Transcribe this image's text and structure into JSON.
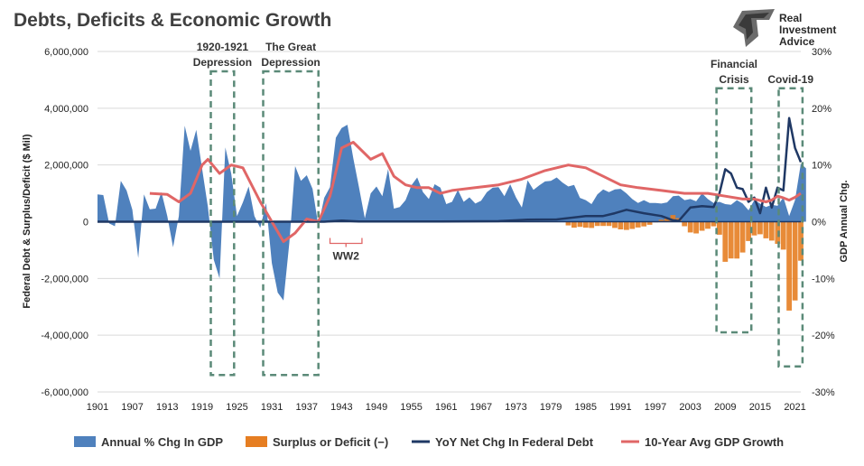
{
  "chart_data": {
    "type": "area",
    "title": "Debts, Deficits & Economic Growth",
    "ylabel": "Federal Debt & Surplus/Deficit ($ Mil)",
    "y2label": "GDP Annual Chg.",
    "ylim": [
      -6000000,
      6000000
    ],
    "y2lim": [
      -30,
      30
    ],
    "yticks": [
      "6,000,000",
      "4,000,000",
      "2,000,000",
      "0",
      "-2,000,000",
      "-4,000,000",
      "-6,000,000"
    ],
    "y2ticks": [
      "30%",
      "20%",
      "10%",
      "0%",
      "-10%",
      "-20%",
      "-30%"
    ],
    "xlim": [
      1901,
      2022
    ],
    "xticks": [
      "1901",
      "1907",
      "1913",
      "1919",
      "1925",
      "1931",
      "1937",
      "1943",
      "1949",
      "1955",
      "1961",
      "1967",
      "1973",
      "1979",
      "1985",
      "1991",
      "1997",
      "2003",
      "2009",
      "2015",
      "2021"
    ],
    "gridlines": "horizontal",
    "legend_position": "bottom",
    "series": [
      {
        "name": "Annual % Chg In GDP",
        "kind": "area",
        "axis": "right",
        "color": "#4f81bd",
        "points": [
          [
            1901,
            4.8
          ],
          [
            1902,
            4.7
          ],
          [
            1903,
            -0.3
          ],
          [
            1904,
            -0.8
          ],
          [
            1905,
            7.2
          ],
          [
            1906,
            5.5
          ],
          [
            1907,
            2.1
          ],
          [
            1908,
            -6.4
          ],
          [
            1909,
            4.8
          ],
          [
            1910,
            2.2
          ],
          [
            1911,
            2.3
          ],
          [
            1912,
            5.2
          ],
          [
            1913,
            1.0
          ],
          [
            1914,
            -4.5
          ],
          [
            1915,
            1.0
          ],
          [
            1916,
            16.9
          ],
          [
            1917,
            12.5
          ],
          [
            1918,
            16.2
          ],
          [
            1919,
            9.3
          ],
          [
            1920,
            2.6
          ],
          [
            1921,
            -6.7
          ],
          [
            1922,
            -10.0
          ],
          [
            1923,
            13.1
          ],
          [
            1924,
            8.5
          ],
          [
            1925,
            1.0
          ],
          [
            1926,
            3.4
          ],
          [
            1927,
            6.2
          ],
          [
            1928,
            1.0
          ],
          [
            1929,
            -1.1
          ],
          [
            1930,
            3.3
          ],
          [
            1931,
            -7.3
          ],
          [
            1932,
            -12.5
          ],
          [
            1933,
            -13.9
          ],
          [
            1934,
            -3.7
          ],
          [
            1935,
            9.8
          ],
          [
            1936,
            7.2
          ],
          [
            1937,
            8.2
          ],
          [
            1938,
            5.8
          ],
          [
            1939,
            -0.7
          ],
          [
            1940,
            4.2
          ],
          [
            1941,
            6.1
          ],
          [
            1942,
            14.8
          ],
          [
            1943,
            16.5
          ],
          [
            1944,
            17.1
          ],
          [
            1945,
            11.2
          ],
          [
            1946,
            6.0
          ],
          [
            1947,
            0.6
          ],
          [
            1948,
            5.0
          ],
          [
            1949,
            6.2
          ],
          [
            1950,
            4.5
          ],
          [
            1951,
            9.3
          ],
          [
            1952,
            2.3
          ],
          [
            1953,
            2.6
          ],
          [
            1954,
            3.8
          ],
          [
            1955,
            6.4
          ],
          [
            1956,
            7.8
          ],
          [
            1957,
            5.2
          ],
          [
            1958,
            4.0
          ],
          [
            1959,
            6.6
          ],
          [
            1960,
            6.0
          ],
          [
            1961,
            3.1
          ],
          [
            1962,
            3.5
          ],
          [
            1963,
            5.6
          ],
          [
            1964,
            3.5
          ],
          [
            1965,
            4.3
          ],
          [
            1966,
            3.2
          ],
          [
            1967,
            3.7
          ],
          [
            1968,
            5.2
          ],
          [
            1969,
            6.0
          ],
          [
            1970,
            6.1
          ],
          [
            1971,
            4.5
          ],
          [
            1972,
            6.6
          ],
          [
            1973,
            4.3
          ],
          [
            1974,
            2.5
          ],
          [
            1975,
            7.3
          ],
          [
            1976,
            5.6
          ],
          [
            1977,
            6.4
          ],
          [
            1978,
            7.1
          ],
          [
            1979,
            7.2
          ],
          [
            1980,
            7.8
          ],
          [
            1981,
            6.9
          ],
          [
            1982,
            6.2
          ],
          [
            1983,
            6.5
          ],
          [
            1984,
            4.2
          ],
          [
            1985,
            3.8
          ],
          [
            1986,
            3.1
          ],
          [
            1987,
            4.8
          ],
          [
            1988,
            5.7
          ],
          [
            1989,
            5.2
          ],
          [
            1990,
            5.7
          ],
          [
            1991,
            5.8
          ],
          [
            1992,
            5.0
          ],
          [
            1993,
            4.0
          ],
          [
            1994,
            3.3
          ],
          [
            1995,
            3.8
          ],
          [
            1996,
            3.3
          ],
          [
            1997,
            3.3
          ],
          [
            1998,
            3.2
          ],
          [
            1999,
            3.4
          ],
          [
            2000,
            4.5
          ],
          [
            2001,
            4.6
          ],
          [
            2002,
            3.8
          ],
          [
            2003,
            4.0
          ],
          [
            2004,
            3.6
          ],
          [
            2005,
            5.0
          ],
          [
            2006,
            4.0
          ],
          [
            2007,
            3.3
          ],
          [
            2008,
            3.5
          ],
          [
            2009,
            3.1
          ],
          [
            2010,
            3.0
          ],
          [
            2011,
            3.8
          ],
          [
            2012,
            3.2
          ],
          [
            2013,
            2.0
          ],
          [
            2014,
            3.8
          ],
          [
            2015,
            3.2
          ],
          [
            2016,
            2.6
          ],
          [
            2017,
            3.0
          ],
          [
            2018,
            2.8
          ],
          [
            2019,
            4.3
          ],
          [
            2020,
            1.0
          ],
          [
            2021,
            3.8
          ],
          [
            2022,
            10.2
          ],
          [
            2022.9,
            9.4
          ]
        ]
      },
      {
        "name": "Surplus or Deficit (−)",
        "kind": "bar",
        "axis": "left",
        "color": "#e67e22",
        "points": [
          [
            1982,
            -130000
          ],
          [
            1983,
            -210000
          ],
          [
            1984,
            -180000
          ],
          [
            1985,
            -210000
          ],
          [
            1986,
            -220000
          ],
          [
            1987,
            -150000
          ],
          [
            1988,
            -150000
          ],
          [
            1989,
            -150000
          ],
          [
            1990,
            -220000
          ],
          [
            1991,
            -270000
          ],
          [
            1992,
            -290000
          ],
          [
            1993,
            -255000
          ],
          [
            1994,
            -203000
          ],
          [
            1995,
            -164000
          ],
          [
            1996,
            -107000
          ],
          [
            1997,
            -22000
          ],
          [
            1998,
            69000
          ],
          [
            1999,
            126000
          ],
          [
            2000,
            236000
          ],
          [
            2001,
            128000
          ],
          [
            2002,
            -158000
          ],
          [
            2003,
            -378000
          ],
          [
            2004,
            -413000
          ],
          [
            2005,
            -318000
          ],
          [
            2006,
            -248000
          ],
          [
            2007,
            -161000
          ],
          [
            2008,
            -459000
          ],
          [
            2009,
            -1413000
          ],
          [
            2010,
            -1294000
          ],
          [
            2011,
            -1300000
          ],
          [
            2012,
            -1087000
          ],
          [
            2013,
            -680000
          ],
          [
            2014,
            -485000
          ],
          [
            2015,
            -442000
          ],
          [
            2016,
            -585000
          ],
          [
            2017,
            -665000
          ],
          [
            2018,
            -779000
          ],
          [
            2019,
            -984000
          ],
          [
            2020,
            -3132000
          ],
          [
            2021,
            -2775000
          ],
          [
            2022,
            -1375000
          ]
        ]
      },
      {
        "name": "YoY Net Chg In Federal Debt",
        "kind": "line",
        "axis": "left",
        "color": "#1f3864",
        "points": [
          [
            1901,
            0
          ],
          [
            1940,
            0
          ],
          [
            1943,
            40000
          ],
          [
            1946,
            10000
          ],
          [
            1950,
            5000
          ],
          [
            1960,
            10000
          ],
          [
            1970,
            20000
          ],
          [
            1975,
            70000
          ],
          [
            1980,
            80000
          ],
          [
            1985,
            200000
          ],
          [
            1988,
            200000
          ],
          [
            1990,
            300000
          ],
          [
            1992,
            420000
          ],
          [
            1995,
            300000
          ],
          [
            1998,
            200000
          ],
          [
            2000,
            50000
          ],
          [
            2001,
            30000
          ],
          [
            2003,
            500000
          ],
          [
            2005,
            550000
          ],
          [
            2007,
            520000
          ],
          [
            2008,
            1000000
          ],
          [
            2009,
            1850000
          ],
          [
            2010,
            1700000
          ],
          [
            2011,
            1200000
          ],
          [
            2012,
            1150000
          ],
          [
            2013,
            700000
          ],
          [
            2014,
            850000
          ],
          [
            2015,
            300000
          ],
          [
            2016,
            1200000
          ],
          [
            2017,
            500000
          ],
          [
            2018,
            1200000
          ],
          [
            2019,
            1100000
          ],
          [
            2020,
            3650000
          ],
          [
            2021,
            2600000
          ],
          [
            2022,
            2100000
          ]
        ]
      },
      {
        "name": "10-Year Avg GDP Growth",
        "kind": "line",
        "axis": "right",
        "color": "#e06666",
        "points": [
          [
            1910,
            5.0
          ],
          [
            1913,
            4.8
          ],
          [
            1915,
            3.5
          ],
          [
            1917,
            5.0
          ],
          [
            1919,
            10.0
          ],
          [
            1920,
            11.0
          ],
          [
            1922,
            8.5
          ],
          [
            1924,
            10.0
          ],
          [
            1926,
            9.5
          ],
          [
            1929,
            3.5
          ],
          [
            1931,
            0.0
          ],
          [
            1933,
            -3.5
          ],
          [
            1935,
            -2.0
          ],
          [
            1937,
            0.5
          ],
          [
            1939,
            0.0
          ],
          [
            1941,
            4.5
          ],
          [
            1943,
            13.0
          ],
          [
            1945,
            14.0
          ],
          [
            1948,
            11.0
          ],
          [
            1950,
            12.0
          ],
          [
            1952,
            8.0
          ],
          [
            1954,
            6.5
          ],
          [
            1956,
            6.0
          ],
          [
            1958,
            6.0
          ],
          [
            1960,
            5.0
          ],
          [
            1962,
            5.5
          ],
          [
            1966,
            6.0
          ],
          [
            1970,
            6.5
          ],
          [
            1974,
            7.5
          ],
          [
            1978,
            9.0
          ],
          [
            1980,
            9.5
          ],
          [
            1982,
            10.0
          ],
          [
            1985,
            9.5
          ],
          [
            1988,
            8.0
          ],
          [
            1991,
            6.5
          ],
          [
            1994,
            6.0
          ],
          [
            1998,
            5.5
          ],
          [
            2002,
            5.0
          ],
          [
            2006,
            5.0
          ],
          [
            2009,
            4.5
          ],
          [
            2012,
            4.0
          ],
          [
            2014,
            4.0
          ],
          [
            2016,
            3.5
          ],
          [
            2017,
            3.8
          ],
          [
            2018,
            4.5
          ],
          [
            2019,
            4.2
          ],
          [
            2020,
            3.8
          ],
          [
            2021,
            4.3
          ],
          [
            2022,
            5.0
          ]
        ]
      }
    ],
    "annotations": [
      {
        "lines": [
          "1920-1921",
          "Depression"
        ],
        "x0": 1920.5,
        "x1": 1924.5,
        "y0_pct": 26.5,
        "y1_pct": -27
      },
      {
        "lines": [
          "The Great",
          "Depression"
        ],
        "x0": 1929.5,
        "x1": 1939,
        "y0_pct": 26.5,
        "y1_pct": -27
      },
      {
        "lines": [
          "Financial",
          "Crisis"
        ],
        "x0": 2007.5,
        "x1": 2013.5,
        "y0_pct": 23.5,
        "y1_pct": -19.5
      },
      {
        "lines": [
          "Covid-19"
        ],
        "x0": 2018.2,
        "x1": 2022.3,
        "y0_pct": 23.5,
        "y1_pct": -25.5
      },
      {
        "lines": [
          "WW2"
        ],
        "x0": 1941,
        "x1": 1946.5
      }
    ]
  },
  "brand": {
    "line1": "Real",
    "line2": "Investment",
    "line3": "Advice"
  }
}
